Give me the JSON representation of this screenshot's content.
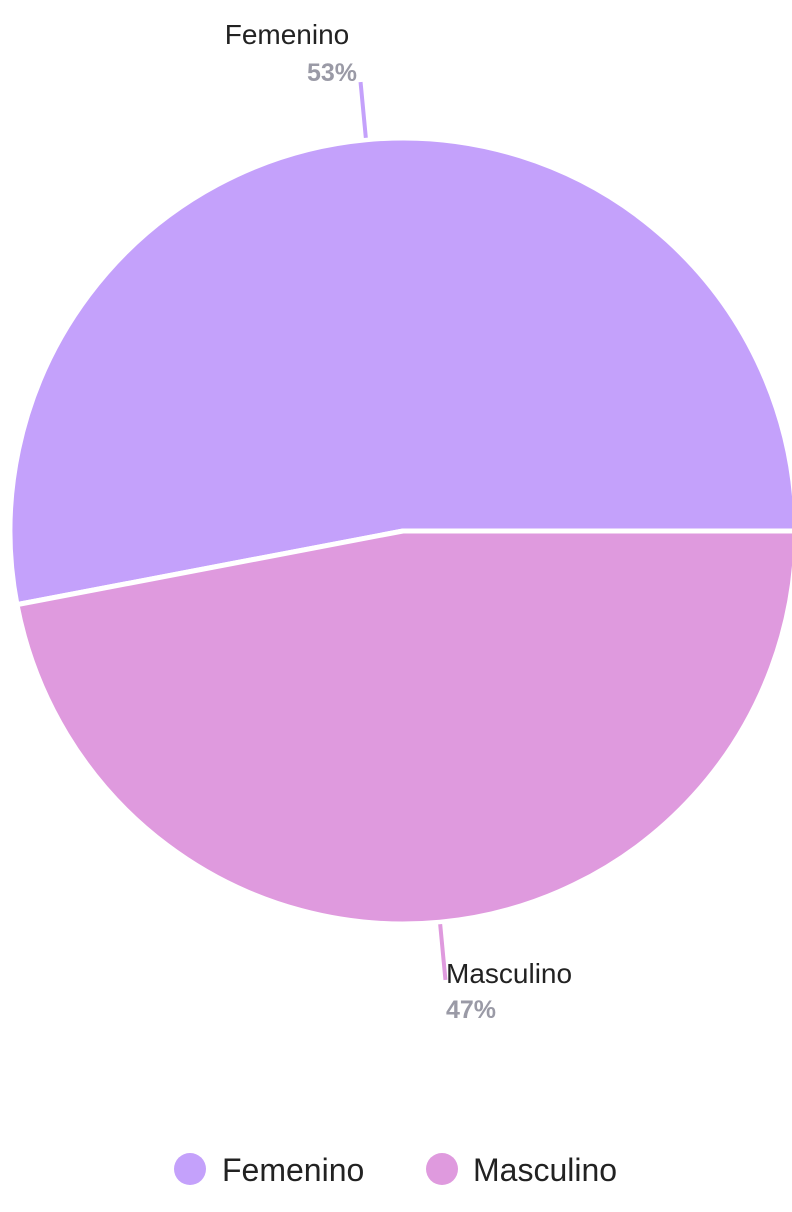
{
  "chart_data": {
    "type": "pie",
    "title": "",
    "slices": [
      {
        "label": "Femenino",
        "value": 53,
        "value_label": "53%",
        "color": "#c4a1fb"
      },
      {
        "label": "Masculino",
        "value": 47,
        "value_label": "47%",
        "color": "#df9ade"
      }
    ],
    "legend": {
      "position": "bottom-center",
      "items": [
        "Femenino",
        "Masculino"
      ]
    },
    "start_angle": "3 o'clock",
    "direction": "counter-clockwise from 3 o'clock for first slice"
  }
}
